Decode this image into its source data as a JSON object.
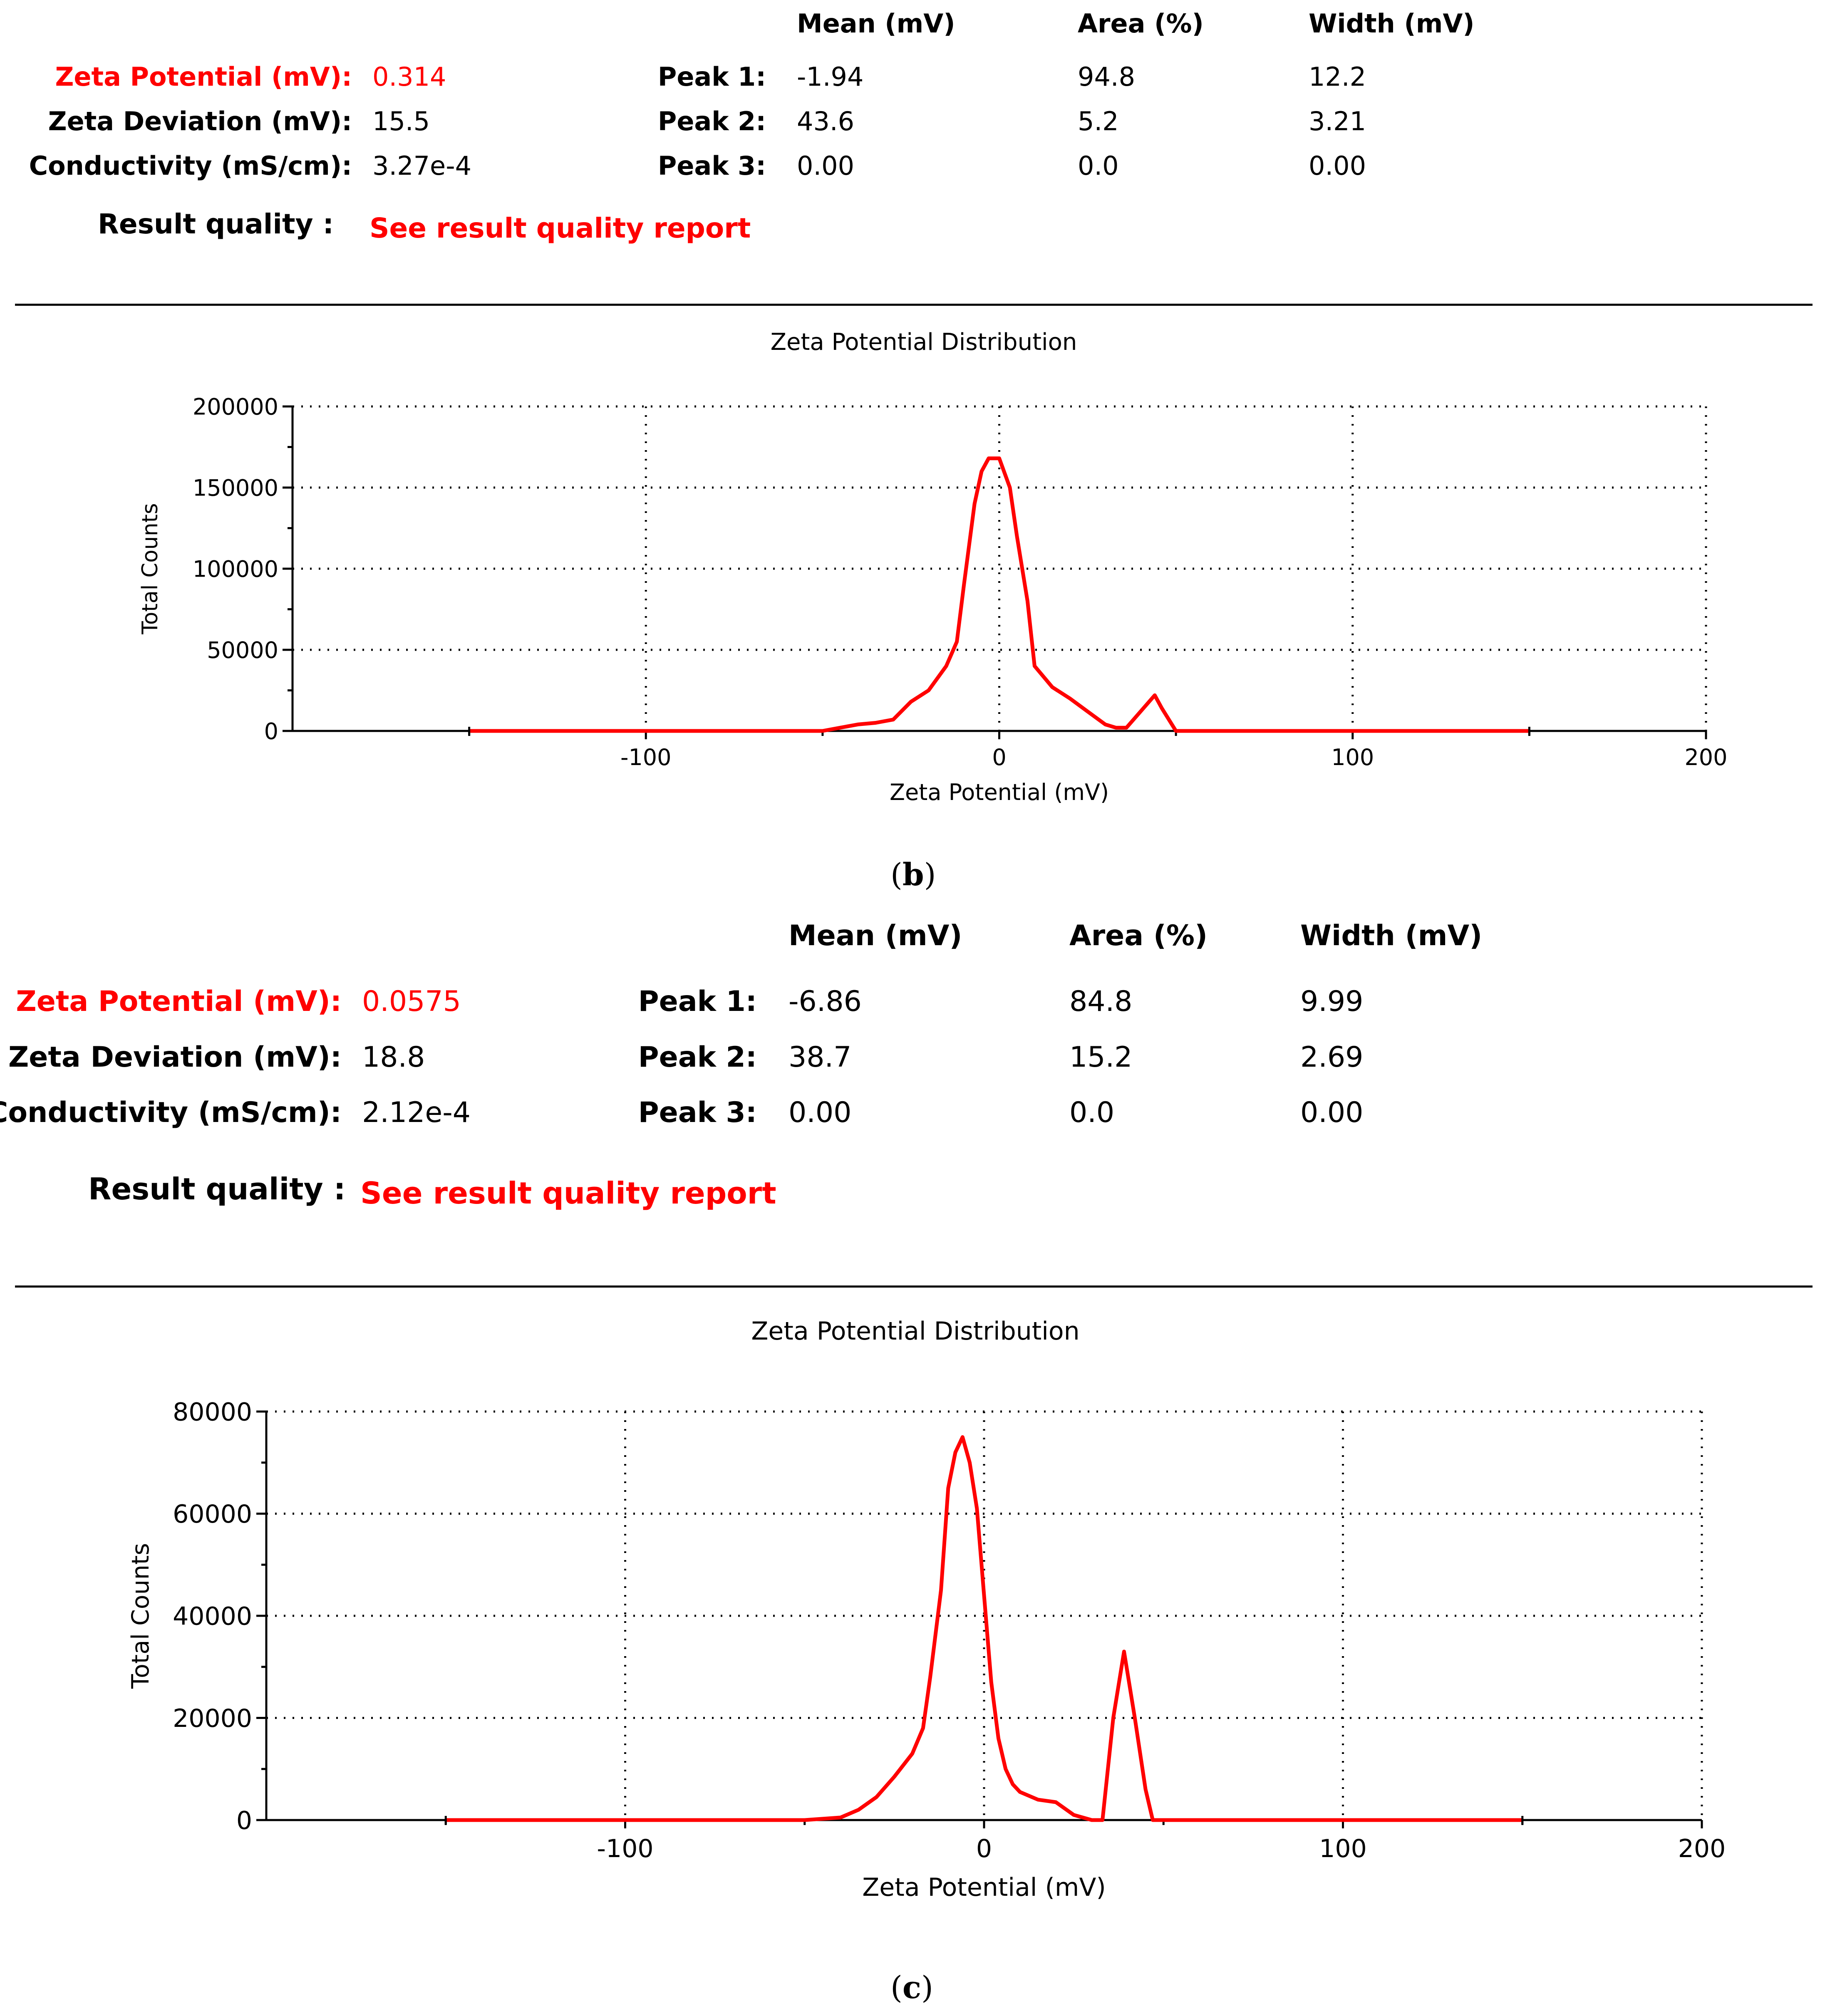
{
  "colors": {
    "accent": "#ff0000",
    "text": "#000000",
    "grid": "#000000"
  },
  "panels": [
    {
      "id": "b",
      "stats": {
        "headers": {
          "mean": "Mean (mV)",
          "area": "Area (%)",
          "width": "Width (mV)"
        },
        "zeta_potential_label": "Zeta Potential (mV):",
        "zeta_potential_value": "0.314",
        "zeta_deviation_label": "Zeta Deviation (mV):",
        "zeta_deviation_value": "15.5",
        "conductivity_label": "Conductivity (mS/cm):",
        "conductivity_value": "3.27e-4",
        "peaks": [
          {
            "label": "Peak 1:",
            "mean": "-1.94",
            "area": "94.8",
            "width": "12.2"
          },
          {
            "label": "Peak 2:",
            "mean": "43.6",
            "area": "5.2",
            "width": "3.21"
          },
          {
            "label": "Peak 3:",
            "mean": "0.00",
            "area": "0.0",
            "width": "0.00"
          }
        ],
        "result_quality_label": "Result quality :",
        "result_quality_link": "See result quality report"
      },
      "caption_pre": "(",
      "caption_letter": "b",
      "caption_post": ")"
    },
    {
      "id": "c",
      "stats": {
        "headers": {
          "mean": "Mean (mV)",
          "area": "Area (%)",
          "width": "Width (mV)"
        },
        "zeta_potential_label": "Zeta Potential (mV):",
        "zeta_potential_value": "0.0575",
        "zeta_deviation_label": "Zeta Deviation (mV):",
        "zeta_deviation_value": "18.8",
        "conductivity_label": "Conductivity (mS/cm):",
        "conductivity_value": "2.12e-4",
        "peaks": [
          {
            "label": "Peak 1:",
            "mean": "-6.86",
            "area": "84.8",
            "width": "9.99"
          },
          {
            "label": "Peak 2:",
            "mean": "38.7",
            "area": "15.2",
            "width": "2.69"
          },
          {
            "label": "Peak 3:",
            "mean": "0.00",
            "area": "0.0",
            "width": "0.00"
          }
        ],
        "result_quality_label": "Result quality :",
        "result_quality_link": "See result quality report"
      },
      "caption_pre": "(",
      "caption_letter": "c",
      "caption_post": ")"
    }
  ],
  "chart_data": [
    {
      "type": "line",
      "title": "Zeta Potential Distribution",
      "xlabel": "Zeta Potential (mV)",
      "ylabel": "Total Counts",
      "xlim": [
        -200,
        200
      ],
      "ylim": [
        0,
        200000
      ],
      "xticks": [
        -100,
        0,
        100,
        200
      ],
      "xtick_labels": [
        "-100",
        "0",
        "100",
        "200"
      ],
      "yticks": [
        0,
        50000,
        100000,
        150000,
        200000
      ],
      "ytick_labels": [
        "0",
        "50000",
        "100000",
        "150000",
        "200000"
      ],
      "x_minor_ticks": [
        -150,
        -50,
        50,
        150
      ],
      "y_minor_ticks": [
        25000,
        75000,
        125000,
        175000
      ],
      "grid": true,
      "series": [
        {
          "name": "Total Counts",
          "color": "#ff0000",
          "x": [
            -150,
            -50,
            -45,
            -40,
            -35,
            -30,
            -25,
            -20,
            -15,
            -12,
            -10,
            -7,
            -5,
            -3,
            0,
            3,
            5,
            8,
            10,
            15,
            20,
            25,
            30,
            33,
            36,
            40,
            44,
            46,
            50,
            150
          ],
          "y": [
            0,
            0,
            2000,
            4000,
            5000,
            7000,
            18000,
            25000,
            40000,
            55000,
            90000,
            140000,
            160000,
            168000,
            168000,
            150000,
            120000,
            80000,
            40000,
            27000,
            20000,
            12000,
            4000,
            2000,
            2000,
            12000,
            22000,
            14000,
            0,
            0
          ]
        }
      ]
    },
    {
      "type": "line",
      "title": "Zeta Potential Distribution",
      "xlabel": "Zeta Potential (mV)",
      "ylabel": "Total Counts",
      "xlim": [
        -200,
        200
      ],
      "ylim": [
        0,
        80000
      ],
      "xticks": [
        -100,
        0,
        100,
        200
      ],
      "xtick_labels": [
        "-100",
        "0",
        "100",
        "200"
      ],
      "yticks": [
        0,
        20000,
        40000,
        60000,
        80000
      ],
      "ytick_labels": [
        "0",
        "20000",
        "40000",
        "60000",
        "80000"
      ],
      "x_minor_ticks": [
        -150,
        -50,
        50,
        150
      ],
      "y_minor_ticks": [
        10000,
        30000,
        50000,
        70000
      ],
      "grid": true,
      "series": [
        {
          "name": "Total Counts",
          "color": "#ff0000",
          "x": [
            -150,
            -50,
            -40,
            -35,
            -30,
            -25,
            -20,
            -17,
            -15,
            -12,
            -10,
            -8,
            -6,
            -4,
            -2,
            0,
            2,
            4,
            6,
            8,
            10,
            15,
            20,
            25,
            30,
            33,
            36,
            39,
            42,
            45,
            47,
            50,
            150
          ],
          "y": [
            0,
            0,
            500,
            2000,
            4500,
            8500,
            13000,
            18000,
            28000,
            45000,
            65000,
            72000,
            75000,
            70000,
            61000,
            44000,
            27000,
            16000,
            10000,
            7000,
            5500,
            4000,
            3500,
            1000,
            0,
            0,
            20000,
            33000,
            20000,
            6000,
            0,
            0,
            0
          ]
        }
      ]
    }
  ]
}
